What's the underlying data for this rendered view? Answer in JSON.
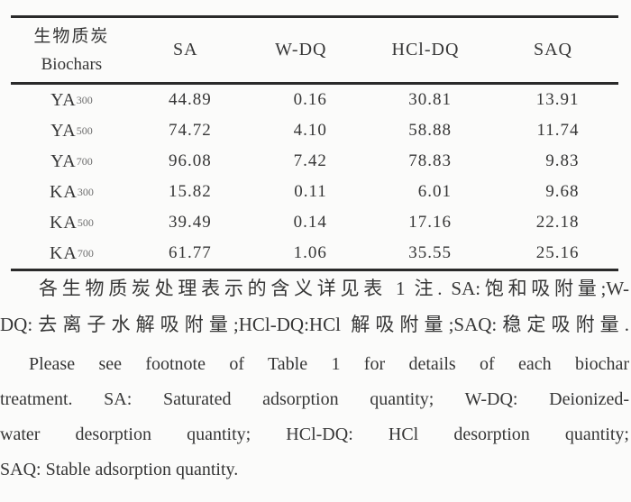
{
  "table": {
    "header": {
      "biochar_cn": "生物质炭",
      "biochar_en": "Biochars",
      "col_sa": "SA",
      "col_wdq": "W-DQ",
      "col_hcldq": "HCl-DQ",
      "col_saq": "SAQ"
    },
    "rows": [
      {
        "label": "YA",
        "sub": "300",
        "sa": "44.89",
        "wdq": "0.16",
        "hcldq": "30.81",
        "saq": "13.91"
      },
      {
        "label": "YA",
        "sub": "500",
        "sa": "74.72",
        "wdq": "4.10",
        "hcldq": "58.88",
        "saq": "11.74"
      },
      {
        "label": "YA",
        "sub": "700",
        "sa": "96.08",
        "wdq": "7.42",
        "hcldq": "78.83",
        "saq": "9.83"
      },
      {
        "label": "KA",
        "sub": "300",
        "sa": "15.82",
        "wdq": "0.11",
        "hcldq": "6.01",
        "saq": "9.68"
      },
      {
        "label": "KA",
        "sub": "500",
        "sa": "39.49",
        "wdq": "0.14",
        "hcldq": "17.16",
        "saq": "22.18"
      },
      {
        "label": "KA",
        "sub": "700",
        "sa": "61.77",
        "wdq": "1.06",
        "hcldq": "35.55",
        "saq": "25.16"
      }
    ]
  },
  "footnotes": {
    "cn_line1": "各生物质炭处理表示的含义详见表 1 注. SA:饱和吸附量;W-",
    "cn_line2": "DQ:去离子水解吸附量;HCl-DQ:HCl 解吸附量;SAQ:稳定吸附量.",
    "en_line1": "Please see footnote of Table 1 for details of each biochar",
    "en_line2": "treatment. SA: Saturated adsorption quantity; W-DQ: Deionized-",
    "en_line3": "water desorption quantity; HCl-DQ: HCl desorption quantity;",
    "en_line4": "SAQ: Stable adsorption quantity."
  },
  "colors": {
    "text": "#363636",
    "rule": "#2a2a2a",
    "background": "#fbfbfa"
  }
}
